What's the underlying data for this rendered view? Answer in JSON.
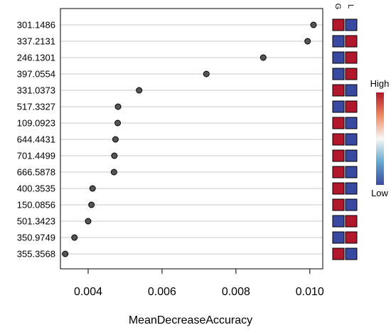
{
  "chart_data": {
    "type": "dot",
    "xlabel": "MeanDecreaseAccuracy",
    "xlim": [
      0.00325,
      0.01035
    ],
    "xticks": [
      0.004,
      0.006,
      0.008,
      0.01
    ],
    "xtick_labels": [
      "0.004",
      "0.006",
      "0.008",
      "0.010"
    ],
    "grid": "horizontal guide lines per row",
    "categories": [
      "301.1486",
      "337.2131",
      "246.1301",
      "397.0554",
      "331.0373",
      "517.3327",
      "109.0923",
      "644.4431",
      "701.4499",
      "666.5878",
      "400.3535",
      "150.0856",
      "501.3423",
      "350.9749",
      "355.3568"
    ],
    "values": [
      0.0101,
      0.00994,
      0.00874,
      0.0072,
      0.00538,
      0.00481,
      0.0048,
      0.00474,
      0.00471,
      0.0047,
      0.00412,
      0.00409,
      0.004,
      0.00363,
      0.00338
    ],
    "heatmap": {
      "columns": [
        "G",
        "L"
      ],
      "cells": [
        [
          "high",
          "low"
        ],
        [
          "low",
          "high"
        ],
        [
          "low",
          "high"
        ],
        [
          "low",
          "high"
        ],
        [
          "high",
          "low"
        ],
        [
          "low",
          "high"
        ],
        [
          "high",
          "low"
        ],
        [
          "high",
          "low"
        ],
        [
          "high",
          "low"
        ],
        [
          "high",
          "low"
        ],
        [
          "high",
          "low"
        ],
        [
          "high",
          "low"
        ],
        [
          "low",
          "high"
        ],
        [
          "low",
          "high"
        ],
        [
          "high",
          "low"
        ]
      ]
    },
    "legend": {
      "high_label": "High",
      "low_label": "Low",
      "placement": "right"
    },
    "colors": {
      "high": "#b2182b",
      "low": "#3a49a0",
      "point_fill": "#555555",
      "guide": "#c8c8c8"
    }
  }
}
